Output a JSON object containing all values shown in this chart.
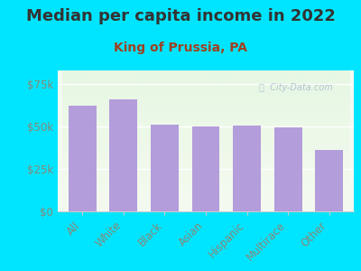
{
  "title": "Median per capita income in 2022",
  "subtitle": "King of Prussia, PA",
  "categories": [
    "All",
    "White",
    "Black",
    "Asian",
    "Hispanic",
    "Multirace",
    "Other"
  ],
  "values": [
    62000,
    66000,
    51000,
    50000,
    50500,
    49500,
    36000
  ],
  "bar_color": "#b39ddb",
  "background_color": "#00e5ff",
  "plot_bg_color": "#f0f8ee",
  "title_color": "#333333",
  "subtitle_color": "#a04020",
  "tick_label_color": "#888877",
  "ytick_labels": [
    "$0",
    "$25k",
    "$50k",
    "$75k"
  ],
  "ytick_vals": [
    0,
    25000,
    50000,
    75000
  ],
  "ylim": [
    0,
    83000
  ],
  "watermark": "ⓘ  City-Data.com",
  "title_fontsize": 13,
  "subtitle_fontsize": 10,
  "tick_fontsize": 8.5,
  "watermark_color": "#aabbcc",
  "spine_color": "#cccccc"
}
